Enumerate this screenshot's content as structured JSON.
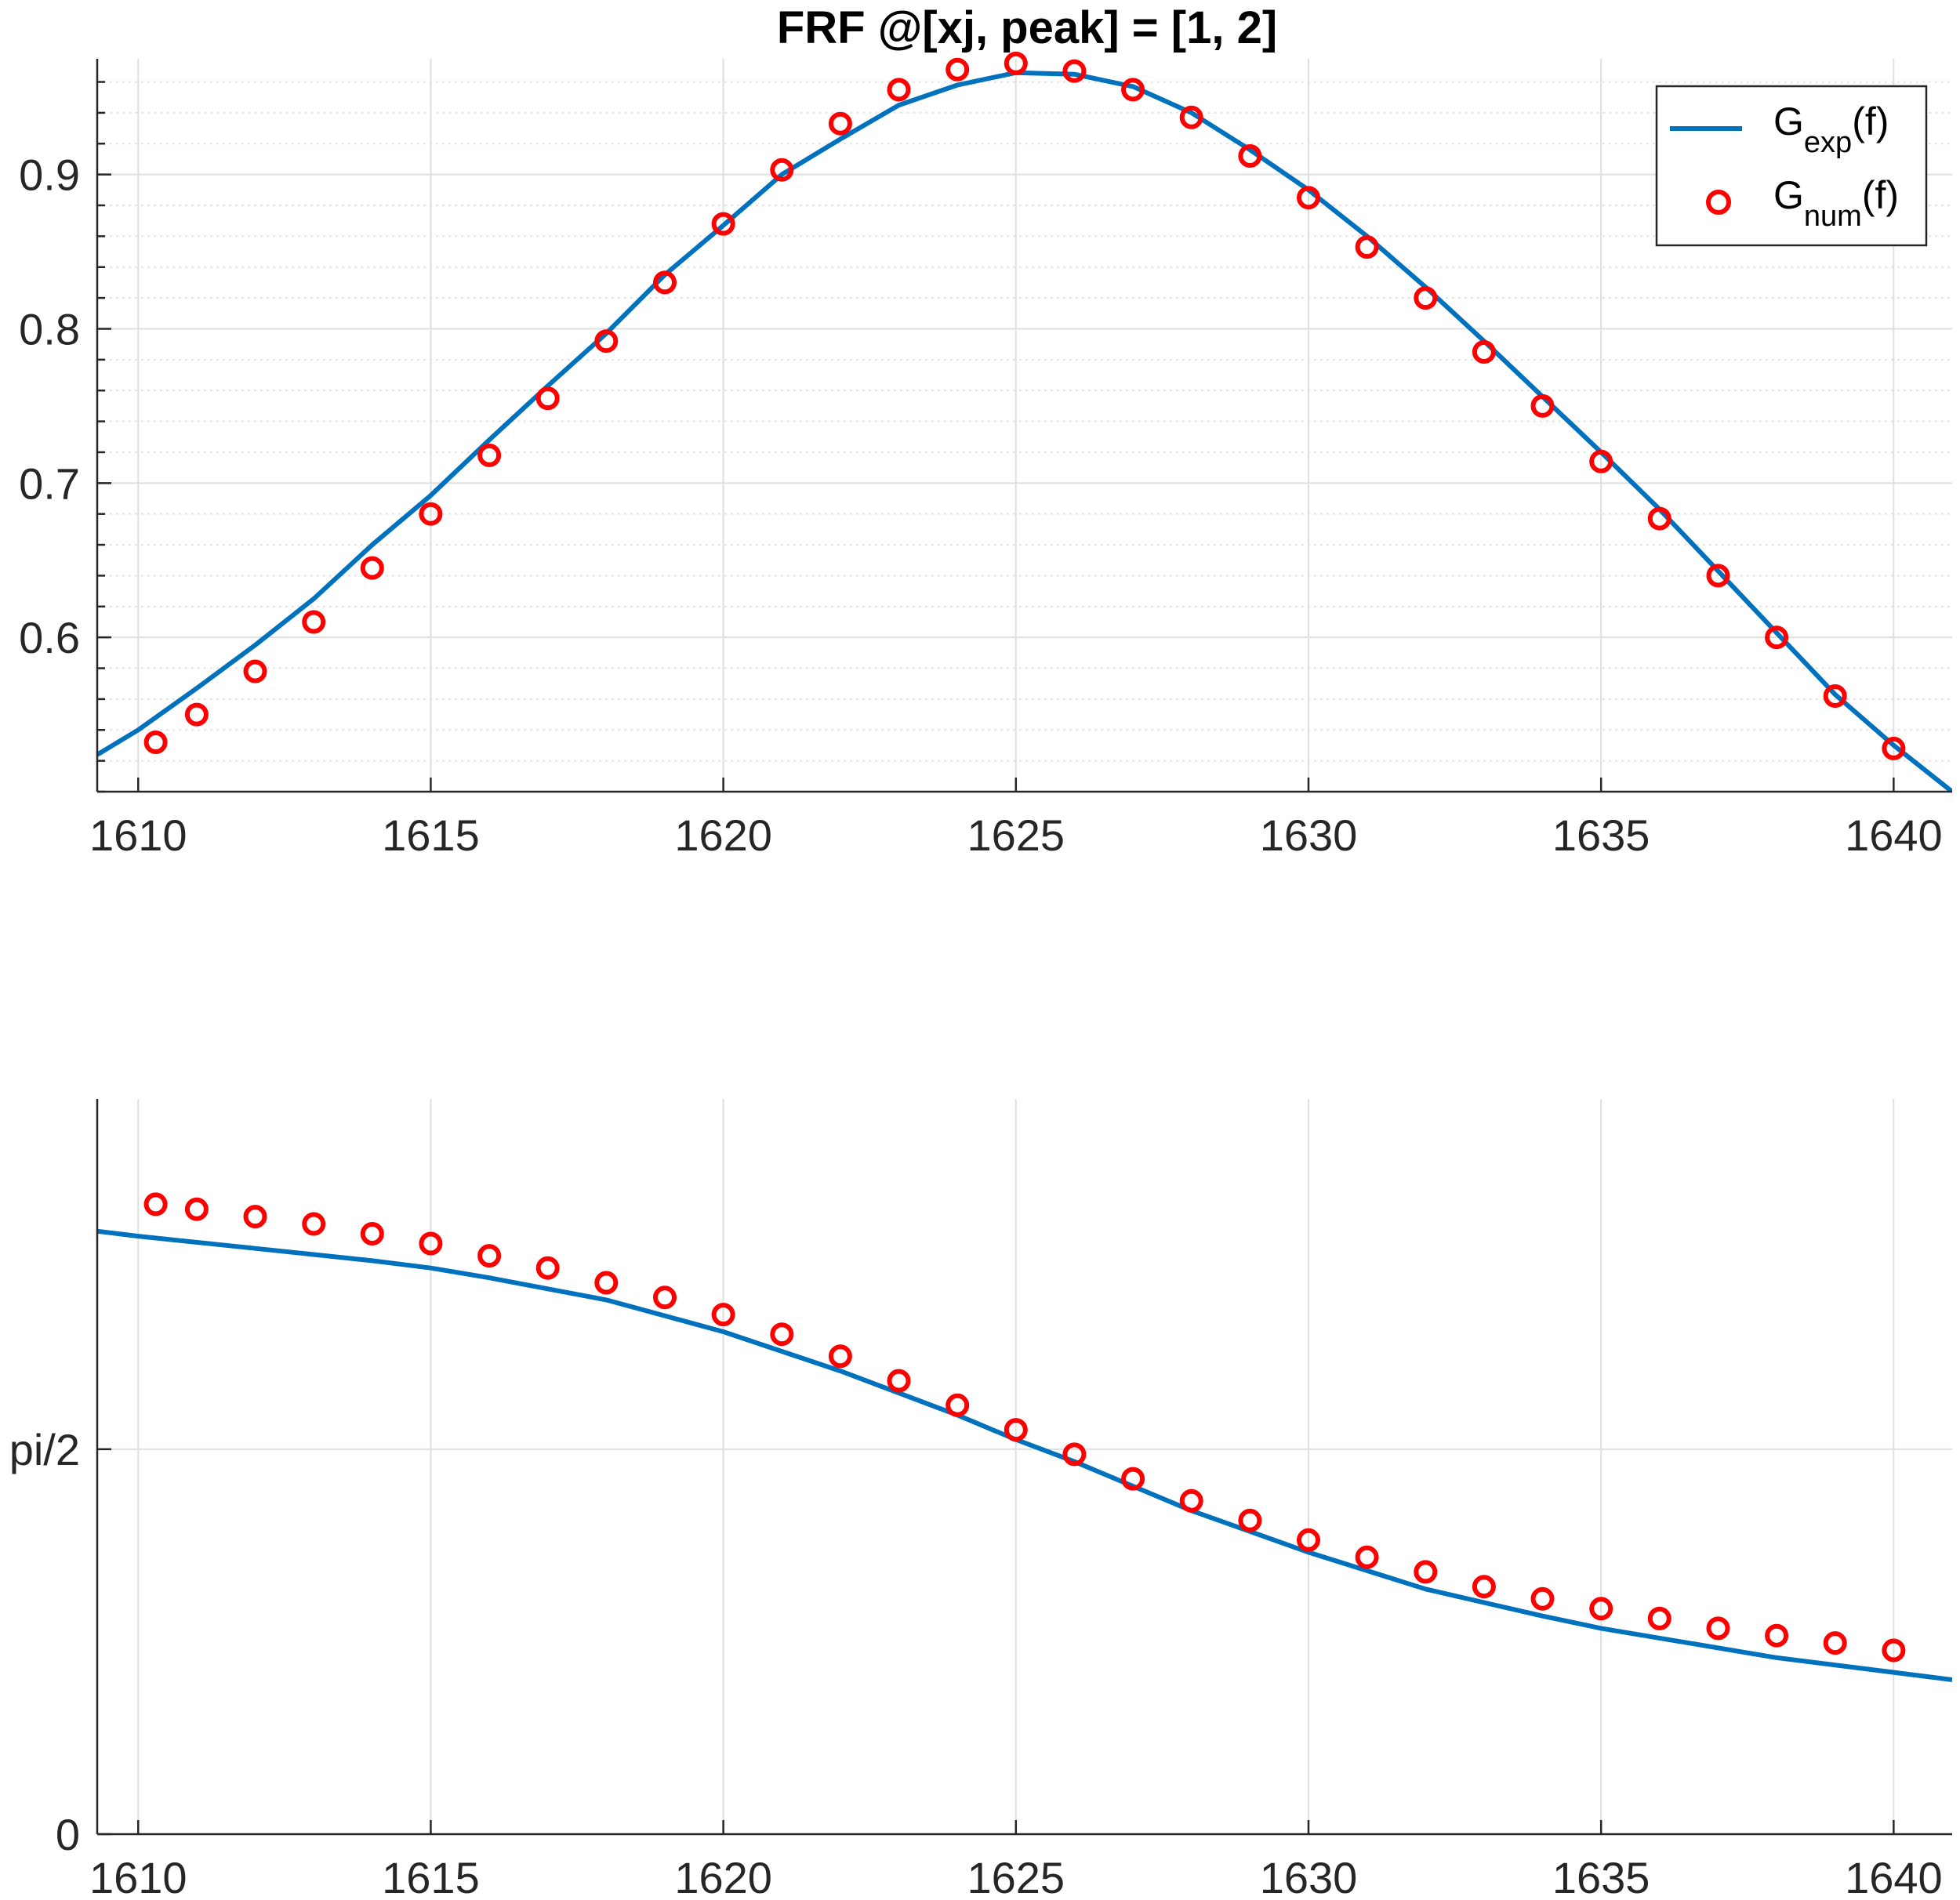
{
  "title": "FRF @[xj, peak] = [1, 2]",
  "colors": {
    "exp": "#0072BD",
    "num": "#FF0000",
    "axis": "#262626",
    "grid_major": "#DFDFDF",
    "grid_minor": "#E3E3E3"
  },
  "legend": {
    "placement": "top-right",
    "items": [
      {
        "base": "G",
        "sub": "exp",
        "tail": "(f)",
        "marker": "line"
      },
      {
        "base": "G",
        "sub": "num",
        "tail": "(f)",
        "marker": "circle"
      }
    ]
  },
  "chart_data": [
    {
      "type": "line",
      "title": "FRF @[xj, peak] = [1, 2]",
      "xlabel": "",
      "ylabel": "",
      "xlim": [
        1609.3,
        1641
      ],
      "ylim": [
        0.5,
        0.975
      ],
      "xticks": [
        1610,
        1615,
        1620,
        1625,
        1630,
        1635,
        1640
      ],
      "xtick_labels": [
        "1610",
        "1615",
        "1620",
        "1625",
        "1630",
        "1635",
        "1640"
      ],
      "yticks": [
        0.6,
        0.7,
        0.8,
        0.9
      ],
      "ytick_labels": [
        "0.6",
        "0.7",
        "0.8",
        "0.9"
      ],
      "grid": true,
      "minor_grid": true,
      "series": [
        {
          "name": "G_exp(f)",
          "style": "line",
          "x": [
            1609.3,
            1610,
            1611,
            1612,
            1613,
            1614,
            1615,
            1616,
            1617,
            1618,
            1619,
            1620,
            1621,
            1622,
            1623,
            1624,
            1625,
            1626,
            1627,
            1628,
            1629,
            1630,
            1631,
            1632,
            1633,
            1634,
            1635,
            1636,
            1637,
            1638,
            1639,
            1640,
            1641
          ],
          "y": [
            0.524,
            0.54,
            0.567,
            0.595,
            0.625,
            0.66,
            0.692,
            0.728,
            0.763,
            0.797,
            0.835,
            0.867,
            0.9,
            0.923,
            0.945,
            0.958,
            0.966,
            0.965,
            0.957,
            0.94,
            0.916,
            0.89,
            0.86,
            0.827,
            0.792,
            0.756,
            0.72,
            0.683,
            0.643,
            0.603,
            0.563,
            0.53,
            0.5
          ]
        },
        {
          "name": "G_num(f)",
          "style": "markers",
          "x": [
            1610.3,
            1611,
            1612,
            1613,
            1614,
            1615,
            1616,
            1617,
            1618,
            1619,
            1620,
            1621,
            1622,
            1623,
            1624,
            1625,
            1626,
            1627,
            1628,
            1629,
            1630,
            1631,
            1632,
            1633,
            1634,
            1635,
            1636,
            1637,
            1638,
            1639,
            1640
          ],
          "y": [
            0.532,
            0.55,
            0.578,
            0.61,
            0.645,
            0.68,
            0.718,
            0.755,
            0.792,
            0.83,
            0.868,
            0.903,
            0.933,
            0.955,
            0.968,
            0.972,
            0.967,
            0.955,
            0.937,
            0.912,
            0.885,
            0.853,
            0.82,
            0.785,
            0.75,
            0.714,
            0.677,
            0.64,
            0.6,
            0.562,
            0.528
          ]
        }
      ]
    },
    {
      "type": "line",
      "xlabel": "",
      "ylabel": "",
      "xlim": [
        1609.3,
        1641
      ],
      "ylim": [
        0,
        3.0
      ],
      "xticks": [
        1610,
        1615,
        1620,
        1625,
        1630,
        1635,
        1640
      ],
      "xtick_labels": [
        "1610",
        "1615",
        "1620",
        "1625",
        "1630",
        "1635",
        "1640"
      ],
      "yticks": [
        0,
        1.5708
      ],
      "ytick_labels": [
        "0",
        "pi/2"
      ],
      "grid": true,
      "minor_grid": false,
      "series": [
        {
          "name": "G_exp(f)",
          "style": "line",
          "x": [
            1609.3,
            1610,
            1612,
            1614,
            1615,
            1616,
            1618,
            1620,
            1622,
            1624,
            1625,
            1626,
            1628,
            1630,
            1632,
            1634,
            1635,
            1636,
            1638,
            1640,
            1641
          ],
          "y": [
            2.46,
            2.44,
            2.39,
            2.34,
            2.31,
            2.27,
            2.18,
            2.05,
            1.89,
            1.71,
            1.61,
            1.52,
            1.32,
            1.15,
            1.0,
            0.89,
            0.84,
            0.8,
            0.72,
            0.66,
            0.63
          ]
        },
        {
          "name": "G_num(f)",
          "style": "markers",
          "x": [
            1610.3,
            1611,
            1612,
            1613,
            1614,
            1615,
            1616,
            1617,
            1618,
            1619,
            1620,
            1621,
            1622,
            1623,
            1624,
            1625,
            1626,
            1627,
            1628,
            1629,
            1630,
            1631,
            1632,
            1633,
            1634,
            1635,
            1636,
            1637,
            1638,
            1639,
            1640
          ],
          "y": [
            2.57,
            2.55,
            2.52,
            2.49,
            2.45,
            2.41,
            2.36,
            2.31,
            2.25,
            2.19,
            2.12,
            2.04,
            1.95,
            1.85,
            1.75,
            1.65,
            1.55,
            1.45,
            1.36,
            1.28,
            1.2,
            1.13,
            1.07,
            1.01,
            0.96,
            0.92,
            0.88,
            0.84,
            0.81,
            0.78,
            0.75
          ]
        }
      ]
    }
  ]
}
